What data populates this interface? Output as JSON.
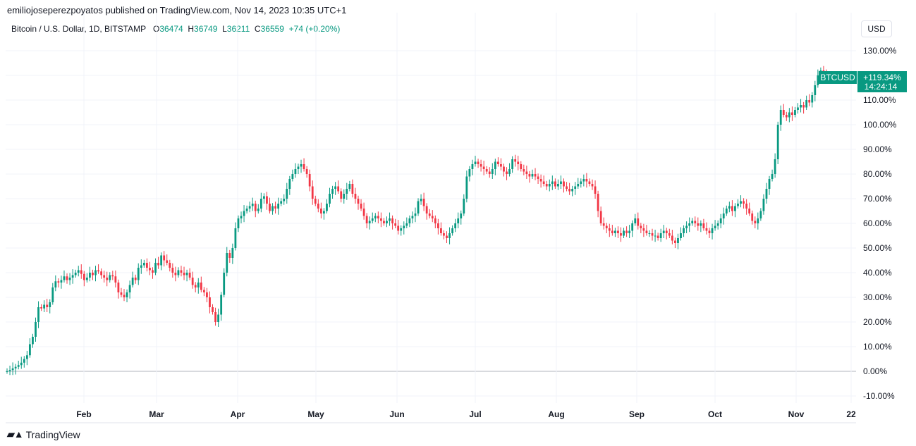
{
  "header": {
    "published_by": "emiliojoseperezpoyatos published on TradingView.com, Nov 14, 2023 10:35 UTC+1"
  },
  "legend": {
    "symbol": "Bitcoin / U.S. Dollar, 1D, BITSTAMP",
    "open_label": "O",
    "open": "36474",
    "high_label": "H",
    "high": "36749",
    "low_label": "L",
    "low": "36211",
    "close_label": "C",
    "close": "36559",
    "change": "+74 (+0.20%)"
  },
  "currency_button": "USD",
  "price_tag": {
    "symbol": "BTCUSD",
    "value": "+119.34%",
    "countdown": "14:24:14"
  },
  "brand": "TradingView",
  "colors": {
    "up": "#089981",
    "down": "#f23645",
    "grid": "#f0f3fa",
    "zero_line": "#b2b5be"
  },
  "chart_data": {
    "type": "candlestick",
    "title": "Bitcoin / U.S. Dollar, 1D, BITSTAMP",
    "y_unit": "percent change",
    "ylim": [
      -13,
      132
    ],
    "y_ticks": [
      "130.00%",
      "120.00%",
      "110.00%",
      "100.00%",
      "90.00%",
      "80.00%",
      "70.00%",
      "60.00%",
      "50.00%",
      "40.00%",
      "30.00%",
      "20.00%",
      "10.00%",
      "0.00%",
      "-10.00%"
    ],
    "x_ticks": [
      "Feb",
      "Mar",
      "Apr",
      "May",
      "Jun",
      "Jul",
      "Aug",
      "Sep",
      "Oct",
      "Nov",
      "22"
    ],
    "grid": true,
    "x_start": "2023-01-01",
    "close_series": [
      0,
      0.5,
      1.2,
      1.8,
      2.5,
      3.5,
      5,
      6.5,
      11,
      14,
      20,
      26,
      25.5,
      27,
      26,
      28,
      34,
      36.5,
      36,
      37,
      38.5,
      37,
      38,
      39,
      40,
      41,
      39.5,
      37,
      38,
      40,
      39,
      41,
      40.5,
      39,
      38,
      37,
      39,
      38.5,
      36,
      32,
      31,
      30,
      32,
      35,
      38,
      37,
      42,
      43,
      44,
      42,
      41,
      40,
      44,
      43,
      47,
      45,
      44,
      42,
      40,
      39,
      41,
      40,
      39,
      40,
      38,
      35,
      34,
      36,
      33,
      32,
      30,
      26,
      24,
      20,
      23,
      31,
      40,
      48,
      46,
      50,
      58,
      62,
      63,
      65,
      66,
      67,
      68,
      65,
      66,
      70,
      71,
      68,
      65,
      67,
      66,
      68,
      69,
      70,
      74,
      78,
      80,
      82,
      83,
      84,
      82,
      80,
      75,
      70,
      68,
      66,
      64,
      65,
      68,
      72,
      74,
      75,
      73,
      70,
      72,
      74,
      76,
      72,
      70,
      68,
      66,
      63,
      60,
      61,
      62,
      63,
      62,
      61,
      60,
      61,
      62,
      60,
      59,
      57,
      58,
      59,
      60,
      62,
      63,
      64,
      69,
      70,
      67,
      64,
      63,
      62,
      60,
      58,
      56,
      55,
      54,
      56,
      58,
      60,
      62,
      64,
      70,
      79,
      82,
      84,
      85,
      84,
      83,
      82,
      81,
      80,
      82,
      85,
      84,
      83,
      81,
      80,
      82,
      86,
      85,
      84,
      82,
      81,
      80,
      79,
      80,
      79,
      78,
      77,
      76,
      75,
      76,
      77,
      75,
      76,
      77,
      75,
      74,
      73,
      74,
      75,
      76,
      77,
      78,
      77,
      76,
      75,
      72,
      65,
      60,
      59,
      58,
      57,
      56,
      57,
      56,
      55,
      57,
      56,
      57,
      60,
      62,
      59,
      58,
      57,
      56,
      56,
      55,
      55,
      54,
      56,
      57,
      56,
      55,
      53,
      52,
      54,
      56,
      58,
      59,
      60,
      61,
      60,
      59,
      60,
      58,
      57,
      56,
      58,
      59,
      60,
      62,
      64,
      66,
      67,
      65,
      67,
      68,
      69,
      68,
      66,
      64,
      61,
      60,
      62,
      65,
      70,
      74,
      78,
      80,
      86,
      100,
      106,
      104,
      103,
      105,
      104,
      106,
      107,
      108,
      107,
      110,
      109,
      112,
      116,
      120,
      122,
      120,
      119.34
    ]
  }
}
